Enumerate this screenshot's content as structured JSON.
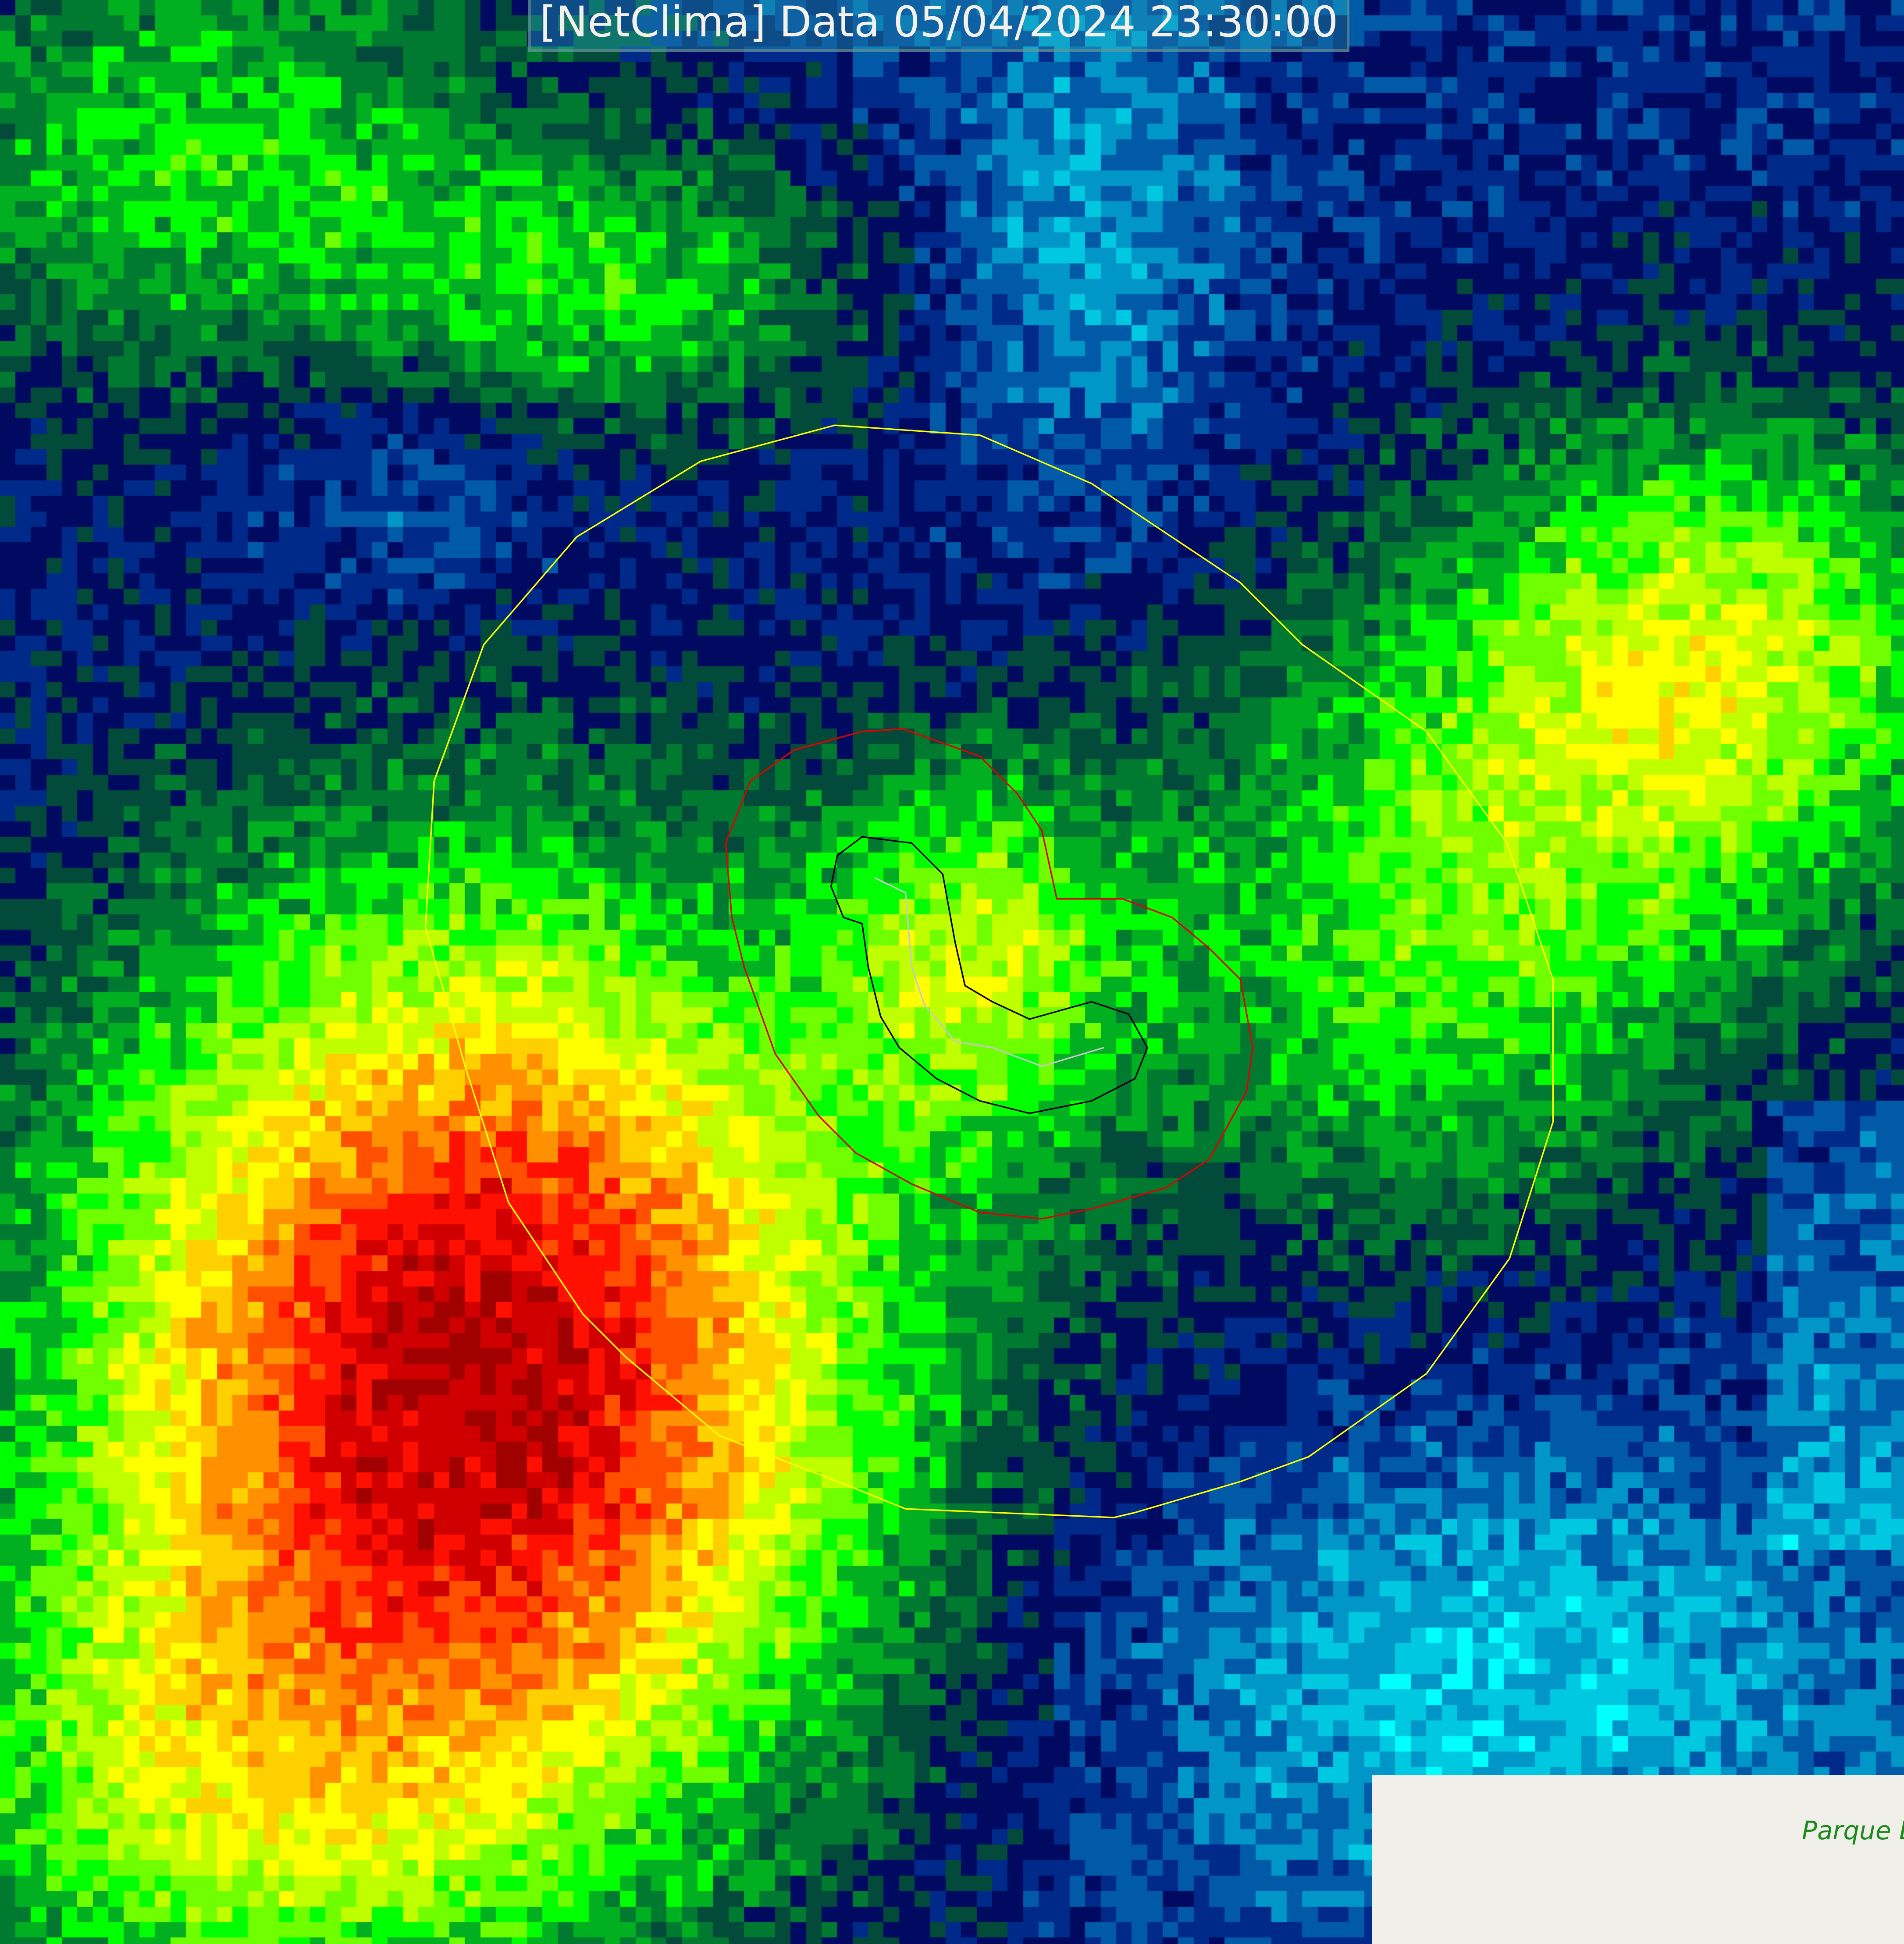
{
  "title": "[NetClima] Data 05/04/2024 23:30:00",
  "map_label": "Parque Estadual",
  "colors": {
    "contour_outer": "#ffff00",
    "contour_middle": "#e00000",
    "contour_inner": "#000000",
    "track": "#c0c0c0",
    "palette": [
      "#ffffff",
      "#00ffff",
      "#00c8e0",
      "#0096c8",
      "#005aa8",
      "#002a8a",
      "#000a60",
      "#024a3a",
      "#007a30",
      "#00b020",
      "#00ff00",
      "#70ff00",
      "#c0ff00",
      "#ffff00",
      "#ffd000",
      "#ff9000",
      "#ff5000",
      "#ff1000",
      "#d00000",
      "#a00000"
    ]
  }
}
